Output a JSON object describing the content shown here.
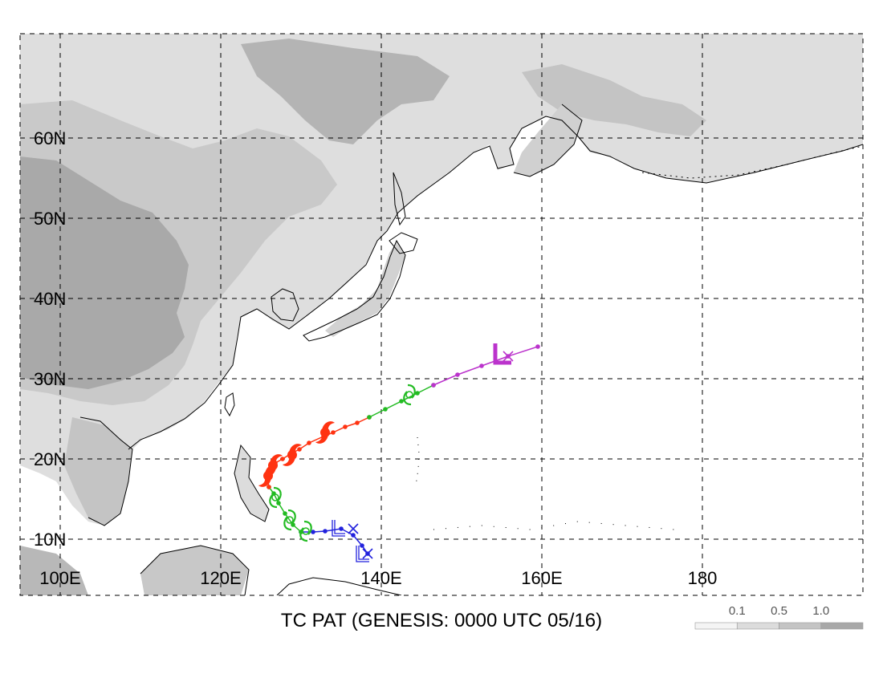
{
  "title": "TC PAT (GENESIS: 0000 UTC 05/16)",
  "axes": {
    "lat_labels": [
      "10N",
      "20N",
      "30N",
      "40N",
      "50N",
      "60N"
    ],
    "lon_labels": [
      "100E",
      "120E",
      "140E",
      "160E",
      "180"
    ]
  },
  "legend": {
    "labels": [
      "0.1",
      "0.5",
      "1.0"
    ],
    "colors": [
      "#f4f4f4",
      "#dcdcdc",
      "#c4c4c4",
      "#a8a8a8"
    ]
  },
  "colors": {
    "land_light": "#e0e0e0",
    "land_mid": "#c8c8c8",
    "land_dark": "#a9a9a9",
    "grid": "#000000",
    "track_blue": "#2222dd",
    "track_green": "#22bb22",
    "track_red": "#ff3311",
    "track_purple": "#bb33cc"
  },
  "track": {
    "segments": [
      {
        "color": "blue",
        "points": [
          [
            138.3,
            8.2
          ],
          [
            137.6,
            9.2
          ],
          [
            136.5,
            10.5
          ],
          [
            135.0,
            11.3
          ],
          [
            133.0,
            11.0
          ],
          [
            131.5,
            10.9
          ],
          [
            130.0,
            10.9
          ]
        ]
      },
      {
        "color": "green",
        "points": [
          [
            130.0,
            10.9
          ],
          [
            129.0,
            11.8
          ],
          [
            128.0,
            13.2
          ],
          [
            127.2,
            14.5
          ],
          [
            126.6,
            15.7
          ],
          [
            126.0,
            16.5
          ]
        ]
      },
      {
        "color": "red",
        "points": [
          [
            126.0,
            16.5
          ],
          [
            125.8,
            17.8
          ],
          [
            126.2,
            18.8
          ],
          [
            126.8,
            19.5
          ],
          [
            127.7,
            20.0
          ],
          [
            128.8,
            20.7
          ],
          [
            129.8,
            21.2
          ],
          [
            131.0,
            22.0
          ],
          [
            132.8,
            22.8
          ],
          [
            134.0,
            23.3
          ],
          [
            135.5,
            24.0
          ],
          [
            137.0,
            24.5
          ],
          [
            138.5,
            25.2
          ]
        ]
      },
      {
        "color": "green",
        "points": [
          [
            138.5,
            25.2
          ],
          [
            140.5,
            26.2
          ],
          [
            142.5,
            27.2
          ],
          [
            144.5,
            28.2
          ],
          [
            146.5,
            29.2
          ]
        ]
      },
      {
        "color": "purple",
        "points": [
          [
            146.5,
            29.2
          ],
          [
            149.5,
            30.5
          ],
          [
            152.5,
            31.6
          ],
          [
            155.8,
            32.8
          ],
          [
            159.5,
            34.0
          ]
        ]
      }
    ],
    "symbols": [
      {
        "type": "TS",
        "color": "green",
        "lon": 130.6,
        "lat": 11.0
      },
      {
        "type": "TS",
        "color": "green",
        "lon": 128.6,
        "lat": 12.4
      },
      {
        "type": "TS",
        "color": "green",
        "lon": 126.8,
        "lat": 15.2
      },
      {
        "type": "TY",
        "color": "red",
        "lon": 125.9,
        "lat": 17.9
      },
      {
        "type": "TY",
        "color": "red",
        "lon": 126.5,
        "lat": 19.2
      },
      {
        "type": "TY",
        "color": "red",
        "lon": 128.9,
        "lat": 20.5
      },
      {
        "type": "TY",
        "color": "red",
        "lon": 133.0,
        "lat": 23.3
      },
      {
        "type": "TS",
        "color": "green",
        "lon": 143.5,
        "lat": 28.0
      },
      {
        "type": "L",
        "color": "purple",
        "lon": 155.0,
        "lat": 33.0
      },
      {
        "type": "L",
        "color": "blue",
        "lon": 134.5,
        "lat": 11.2
      },
      {
        "type": "L",
        "color": "blue",
        "lon": 137.5,
        "lat": 8.0
      }
    ],
    "x_marks": [
      {
        "color": "purple",
        "lon": 155.8,
        "lat": 32.8
      },
      {
        "color": "blue",
        "lon": 136.5,
        "lat": 11.3
      },
      {
        "color": "blue",
        "lon": 138.3,
        "lat": 8.2
      }
    ]
  }
}
